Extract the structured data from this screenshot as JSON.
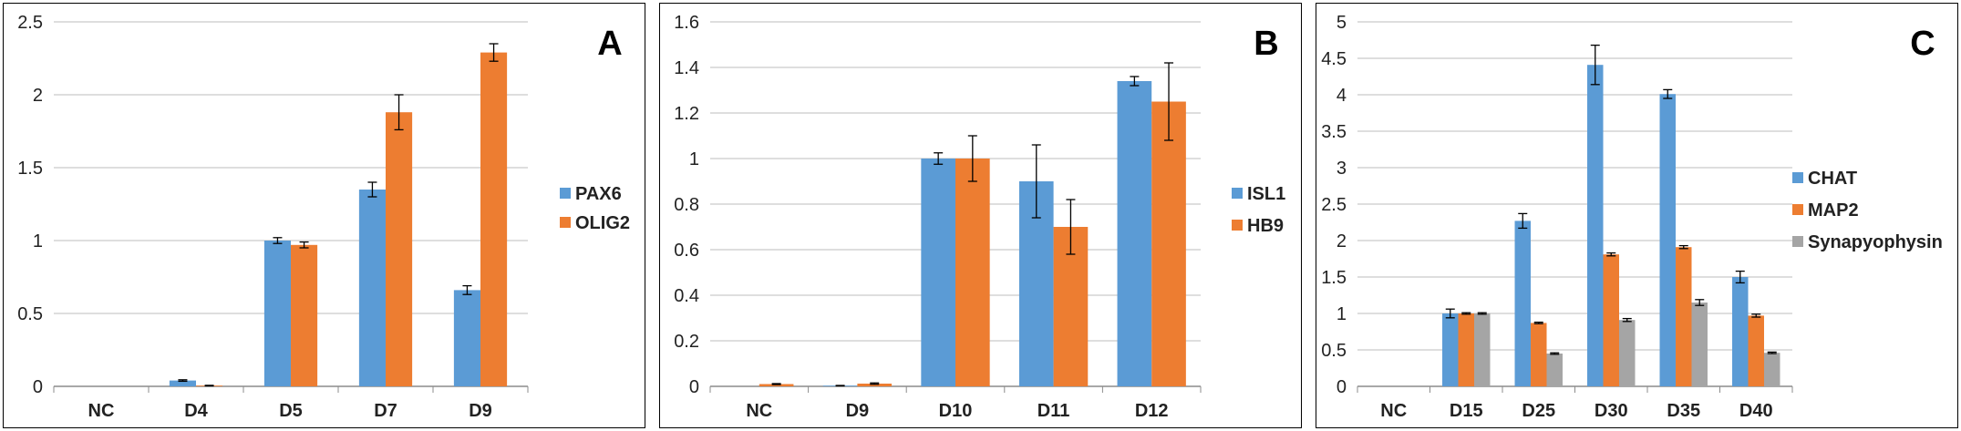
{
  "chart_data": [
    {
      "type": "bar",
      "panel_label": "A",
      "categories": [
        "NC",
        "D4",
        "D5",
        "D7",
        "D9"
      ],
      "ylim": [
        0,
        2.5
      ],
      "yticks": [
        "0",
        "0.5",
        "1",
        "1.5",
        "2",
        "2.5"
      ],
      "ytick_values": [
        0,
        0.5,
        1,
        1.5,
        2,
        2.5
      ],
      "grid": true,
      "legend_position": "right",
      "series": [
        {
          "name": "PAX6",
          "color": "#5B9BD5",
          "values": [
            0,
            0.04,
            1.0,
            1.35,
            0.66
          ],
          "errors": [
            0,
            0.005,
            0.02,
            0.05,
            0.03
          ]
        },
        {
          "name": "OLIG2",
          "color": "#ED7D31",
          "values": [
            0,
            0.005,
            0.97,
            1.88,
            2.29
          ],
          "errors": [
            0,
            0.002,
            0.02,
            0.12,
            0.06
          ]
        }
      ]
    },
    {
      "type": "bar",
      "panel_label": "B",
      "categories": [
        "NC",
        "D9",
        "D10",
        "D11",
        "D12"
      ],
      "ylim": [
        0,
        1.6
      ],
      "yticks": [
        "0",
        "0.2",
        "0.4",
        "0.6",
        "0.8",
        "1",
        "1.2",
        "1.4",
        "1.6"
      ],
      "ytick_values": [
        0,
        0.2,
        0.4,
        0.6,
        0.8,
        1,
        1.2,
        1.4,
        1.6
      ],
      "grid": true,
      "legend_position": "right",
      "series": [
        {
          "name": "ISL1",
          "color": "#5B9BD5",
          "values": [
            0,
            0.003,
            1.0,
            0.9,
            1.34
          ],
          "errors": [
            0,
            0.001,
            0.025,
            0.16,
            0.02
          ]
        },
        {
          "name": "HB9",
          "color": "#ED7D31",
          "values": [
            0.01,
            0.012,
            1.0,
            0.7,
            1.25
          ],
          "errors": [
            0.002,
            0.003,
            0.1,
            0.12,
            0.17
          ]
        }
      ]
    },
    {
      "type": "bar",
      "panel_label": "C",
      "categories": [
        "NC",
        "D15",
        "D25",
        "D30",
        "D35",
        "D40"
      ],
      "ylim": [
        0,
        5
      ],
      "yticks": [
        "0",
        "0.5",
        "1",
        "1.5",
        "2",
        "2.5",
        "3",
        "3.5",
        "4",
        "4.5",
        "5"
      ],
      "ytick_values": [
        0,
        0.5,
        1,
        1.5,
        2,
        2.5,
        3,
        3.5,
        4,
        4.5,
        5
      ],
      "grid": true,
      "legend_position": "right",
      "series": [
        {
          "name": "CHAT",
          "color": "#5B9BD5",
          "values": [
            0,
            1.0,
            2.27,
            4.41,
            4.01,
            1.5
          ],
          "errors": [
            0,
            0.06,
            0.1,
            0.27,
            0.06,
            0.08
          ]
        },
        {
          "name": "MAP2",
          "color": "#ED7D31",
          "values": [
            0,
            1.0,
            0.87,
            1.81,
            1.91,
            0.97
          ],
          "errors": [
            0,
            0.01,
            0.01,
            0.02,
            0.02,
            0.02
          ]
        },
        {
          "name": "Synapyophysin",
          "color": "#A5A5A5",
          "values": [
            0,
            1.0,
            0.45,
            0.91,
            1.15,
            0.46
          ],
          "errors": [
            0,
            0.01,
            0.01,
            0.02,
            0.04,
            0.01
          ]
        }
      ]
    }
  ]
}
